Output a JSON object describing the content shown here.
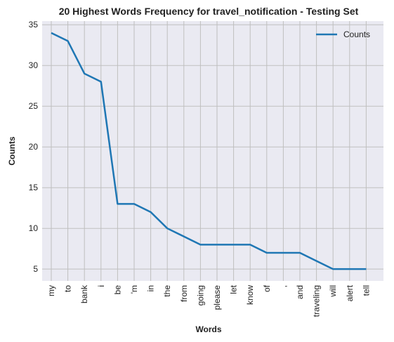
{
  "chart_data": {
    "type": "line",
    "title": "20 Highest Words Frequency for travel_notification - Testing Set",
    "xlabel": "Words",
    "ylabel": "Counts",
    "categories": [
      "my",
      "to",
      "bank",
      "i",
      "be",
      "'m",
      "in",
      "the",
      "from",
      "going",
      "please",
      "let",
      "know",
      "of",
      ",",
      "and",
      "traveling",
      "will",
      "alert",
      "tell"
    ],
    "series": [
      {
        "name": "Counts",
        "color": "#1f77b4",
        "values": [
          34,
          33,
          29,
          28,
          13,
          13,
          12,
          10,
          9,
          8,
          8,
          8,
          8,
          7,
          7,
          7,
          6,
          5,
          5,
          5
        ]
      }
    ],
    "ylim": [
      3.55,
      35.45
    ],
    "yticks": [
      5,
      10,
      15,
      20,
      25,
      30,
      35
    ],
    "grid": true,
    "legend": "top-right",
    "plot_background": "#eaeaf2",
    "grid_color": "#bfbfbf"
  }
}
